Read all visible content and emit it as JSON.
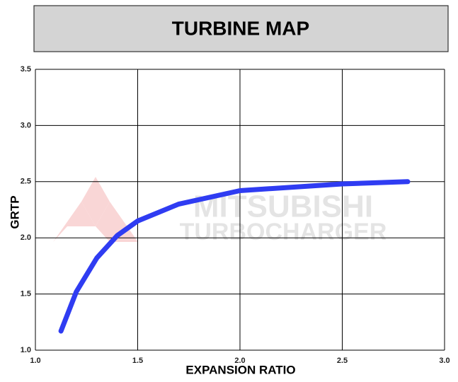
{
  "chart_data": {
    "type": "line",
    "title": "TURBINE MAP",
    "x_label": "EXPANSION RATIO",
    "y_label": "GRTP",
    "watermark": [
      "MITSUBISHI",
      "TURBOCHARGER"
    ],
    "x": [
      1.125,
      1.2,
      1.3,
      1.4,
      1.5,
      1.7,
      2.0,
      2.5,
      2.82
    ],
    "series": [
      {
        "name": "GRTP",
        "color": "#2f3cf2",
        "values": [
          1.17,
          1.52,
          1.82,
          2.02,
          2.15,
          2.3,
          2.42,
          2.48,
          2.5
        ]
      }
    ],
    "xlim": [
      1.0,
      3.0
    ],
    "xticks": [
      {
        "value": 1.0,
        "label": "1.0"
      },
      {
        "value": 1.5,
        "label": "1.5"
      },
      {
        "value": 2.0,
        "label": "2.0"
      },
      {
        "value": 2.5,
        "label": "2.5"
      },
      {
        "value": 3.0,
        "label": "3.0"
      }
    ],
    "ylim": [
      1.0,
      3.5
    ],
    "yticks": [
      {
        "value": 1.0,
        "label": "1.0"
      },
      {
        "value": 1.5,
        "label": "1.5"
      },
      {
        "value": 2.0,
        "label": "2.0"
      },
      {
        "value": 2.5,
        "label": "2.5"
      },
      {
        "value": 3.0,
        "label": "3.0"
      },
      {
        "value": 3.5,
        "label": "3.5"
      }
    ],
    "grid": true
  }
}
